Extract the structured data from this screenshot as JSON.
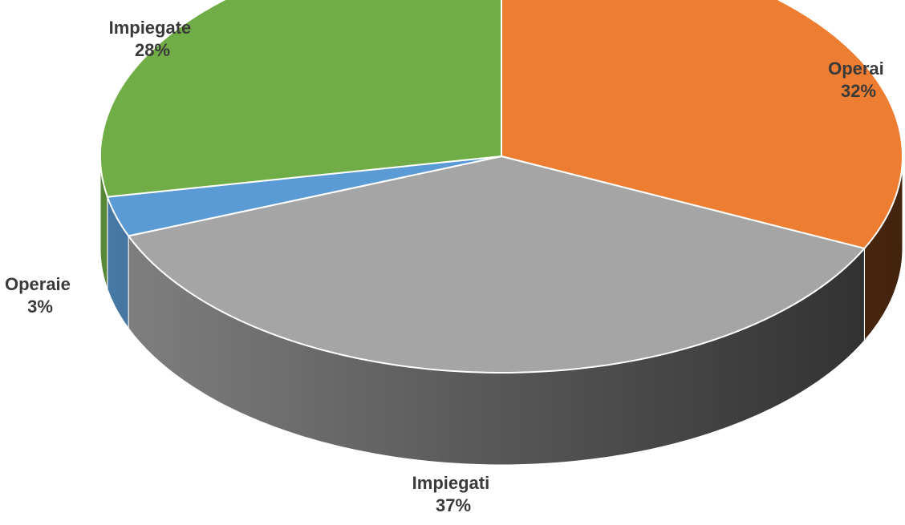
{
  "chart_data": {
    "type": "pie",
    "style": "3d",
    "slices": [
      {
        "name": "Operai",
        "value": 32,
        "label": "32%",
        "color": "#ED7D31"
      },
      {
        "name": "Impiegati",
        "value": 37,
        "label": "37%",
        "color": "#A5A5A5"
      },
      {
        "name": "Operaie",
        "value": 3,
        "label": "3%",
        "color": "#5B9BD5"
      },
      {
        "name": "Impiegate",
        "value": 28,
        "label": "28%",
        "color": "#70AD47"
      }
    ],
    "legend": "none"
  }
}
